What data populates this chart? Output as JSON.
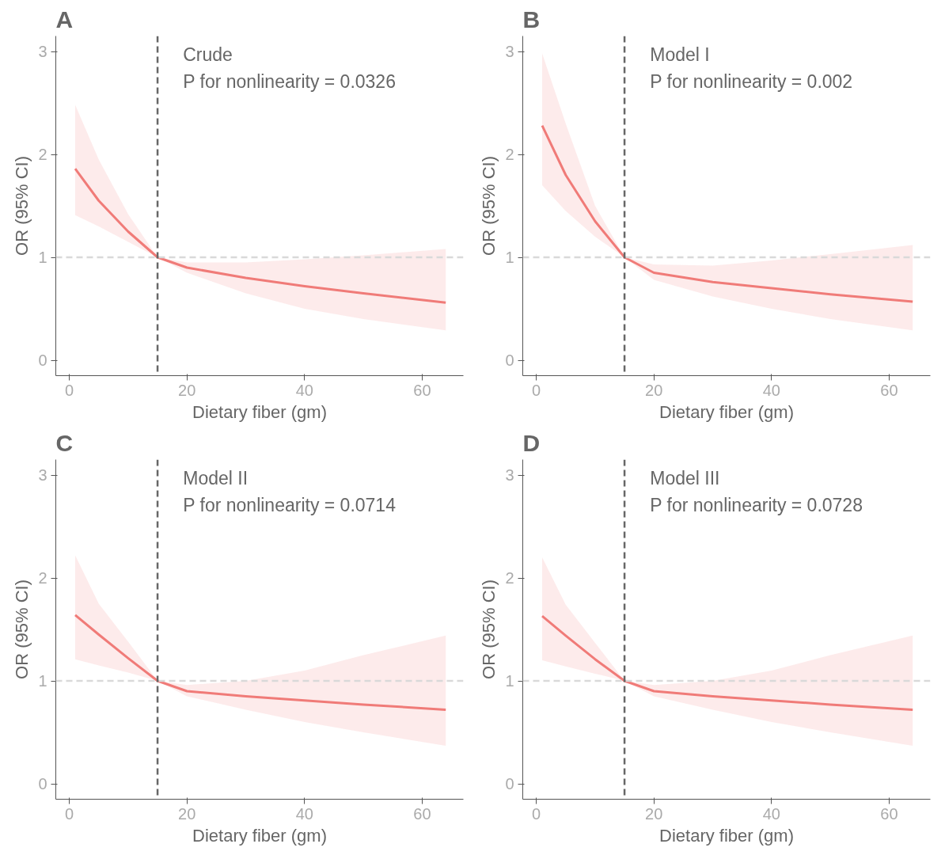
{
  "chart_data": [
    {
      "type": "line",
      "title": "A",
      "xlabel": "Dietary fiber (gm)",
      "ylabel": "OR (95% CI)",
      "annotations": [
        "Crude",
        "P for nonlinearity = 0.0326"
      ],
      "x": [
        1,
        5,
        10,
        15,
        20,
        30,
        40,
        50,
        64
      ],
      "series": [
        {
          "color": "#f07b78",
          "values": [
            1.86,
            1.55,
            1.25,
            1.0,
            0.9,
            0.8,
            0.72,
            0.65,
            0.56
          ],
          "lower": [
            1.41,
            1.3,
            1.15,
            1.0,
            0.85,
            0.65,
            0.5,
            0.4,
            0.29
          ],
          "upper": [
            2.48,
            1.95,
            1.42,
            1.0,
            0.95,
            0.95,
            0.98,
            1.02,
            1.08
          ]
        }
      ],
      "xlim": [
        -2.3,
        67
      ],
      "ylim": [
        -0.15,
        3.15
      ],
      "xticks": [
        0,
        20,
        40,
        60
      ],
      "yticks": [
        0,
        1,
        2,
        3
      ],
      "grid": false,
      "ref_lines": [
        {
          "axis": "y",
          "value": 1,
          "color": "#d9d9d9",
          "line_style": "dashed"
        },
        {
          "axis": "x",
          "value": 15,
          "color": "#666666",
          "line_style": "dashed"
        }
      ]
    },
    {
      "type": "line",
      "title": "B",
      "xlabel": "Dietary fiber (gm)",
      "ylabel": "OR (95% CI)",
      "annotations": [
        "Model I",
        "P for nonlinearity = 0.002"
      ],
      "x": [
        1,
        5,
        10,
        15,
        20,
        30,
        40,
        50,
        64
      ],
      "series": [
        {
          "color": "#f07b78",
          "values": [
            2.28,
            1.8,
            1.35,
            1.0,
            0.85,
            0.76,
            0.7,
            0.64,
            0.57
          ],
          "lower": [
            1.7,
            1.45,
            1.2,
            1.0,
            0.78,
            0.62,
            0.5,
            0.4,
            0.29
          ],
          "upper": [
            2.98,
            2.3,
            1.5,
            1.0,
            0.93,
            0.92,
            0.97,
            1.03,
            1.12
          ]
        }
      ],
      "xlim": [
        -2.3,
        67
      ],
      "ylim": [
        -0.15,
        3.15
      ],
      "xticks": [
        0,
        20,
        40,
        60
      ],
      "yticks": [
        0,
        1,
        2,
        3
      ],
      "grid": false,
      "ref_lines": [
        {
          "axis": "y",
          "value": 1,
          "color": "#d9d9d9",
          "line_style": "dashed"
        },
        {
          "axis": "x",
          "value": 15,
          "color": "#666666",
          "line_style": "dashed"
        }
      ]
    },
    {
      "type": "line",
      "title": "C",
      "xlabel": "Dietary fiber (gm)",
      "ylabel": "OR (95% CI)",
      "annotations": [
        "Model II",
        "P for nonlinearity = 0.0714"
      ],
      "x": [
        1,
        5,
        10,
        15,
        20,
        30,
        40,
        50,
        64
      ],
      "series": [
        {
          "color": "#f07b78",
          "values": [
            1.64,
            1.45,
            1.22,
            1.0,
            0.9,
            0.85,
            0.81,
            0.77,
            0.72
          ],
          "lower": [
            1.21,
            1.15,
            1.08,
            1.0,
            0.85,
            0.72,
            0.6,
            0.5,
            0.37
          ],
          "upper": [
            2.22,
            1.75,
            1.38,
            1.0,
            0.96,
            1.0,
            1.1,
            1.25,
            1.44
          ]
        }
      ],
      "xlim": [
        -2.3,
        67
      ],
      "ylim": [
        -0.15,
        3.15
      ],
      "xticks": [
        0,
        20,
        40,
        60
      ],
      "yticks": [
        0,
        1,
        2,
        3
      ],
      "grid": false,
      "ref_lines": [
        {
          "axis": "y",
          "value": 1,
          "color": "#d9d9d9",
          "line_style": "dashed"
        },
        {
          "axis": "x",
          "value": 15,
          "color": "#666666",
          "line_style": "dashed"
        }
      ]
    },
    {
      "type": "line",
      "title": "D",
      "xlabel": "Dietary fiber (gm)",
      "ylabel": "OR (95% CI)",
      "annotations": [
        "Model III",
        "P for nonlinearity = 0.0728"
      ],
      "x": [
        1,
        5,
        10,
        15,
        20,
        30,
        40,
        50,
        64
      ],
      "series": [
        {
          "color": "#f07b78",
          "values": [
            1.63,
            1.44,
            1.21,
            1.0,
            0.9,
            0.85,
            0.81,
            0.77,
            0.72
          ],
          "lower": [
            1.2,
            1.14,
            1.07,
            1.0,
            0.85,
            0.72,
            0.6,
            0.5,
            0.37
          ],
          "upper": [
            2.2,
            1.74,
            1.37,
            1.0,
            0.96,
            1.0,
            1.1,
            1.25,
            1.44
          ]
        }
      ],
      "xlim": [
        -2.3,
        67
      ],
      "ylim": [
        -0.15,
        3.15
      ],
      "xticks": [
        0,
        20,
        40,
        60
      ],
      "yticks": [
        0,
        1,
        2,
        3
      ],
      "grid": false,
      "ref_lines": [
        {
          "axis": "y",
          "value": 1,
          "color": "#d9d9d9",
          "line_style": "dashed"
        },
        {
          "axis": "x",
          "value": 15,
          "color": "#666666",
          "line_style": "dashed"
        }
      ]
    }
  ]
}
